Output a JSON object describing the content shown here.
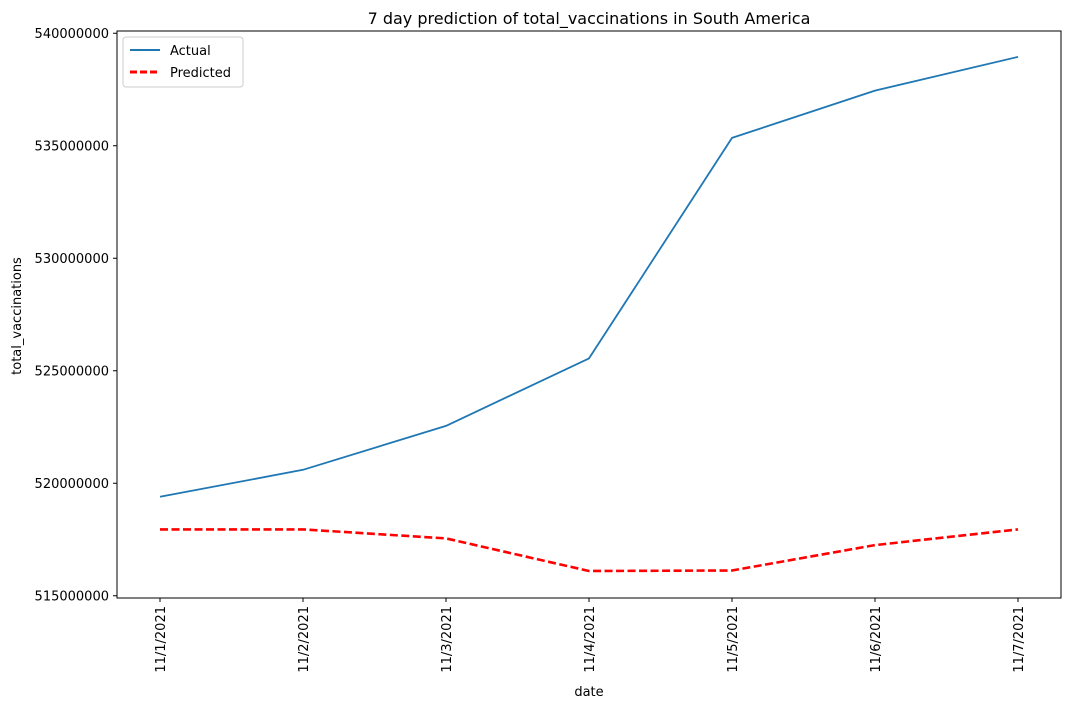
{
  "chart_data": {
    "type": "line",
    "title": "7 day prediction of total_vaccinations in South America",
    "xlabel": "date",
    "ylabel": "total_vaccinations",
    "categories": [
      "11/1/2021",
      "11/2/2021",
      "11/3/2021",
      "11/4/2021",
      "11/5/2021",
      "11/6/2021",
      "11/7/2021"
    ],
    "ylim": [
      514900000,
      540100000
    ],
    "yticks": [
      515000000,
      520000000,
      525000000,
      530000000,
      535000000,
      540000000
    ],
    "ytick_labels": [
      "515000000",
      "520000000",
      "525000000",
      "530000000",
      "535000000",
      "540000000"
    ],
    "grid": false,
    "legend_position": "top-left",
    "series": [
      {
        "name": "Actual",
        "color": "#1f77b4",
        "line_style": "solid",
        "values": [
          519400000,
          520600000,
          522550000,
          525550000,
          535350000,
          537450000,
          538950000
        ]
      },
      {
        "name": "Predicted",
        "color": "#ff0000",
        "line_style": "dashed",
        "values": [
          517950000,
          517950000,
          517550000,
          516100000,
          516120000,
          517250000,
          517950000
        ]
      }
    ]
  }
}
